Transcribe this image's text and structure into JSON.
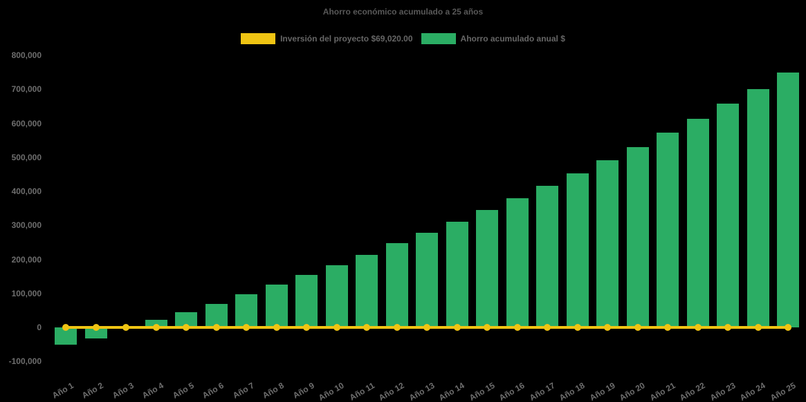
{
  "chart_data": {
    "type": "bar",
    "title": "Ahorro económico acumulado a 25 años",
    "xlabel": "",
    "ylabel": "",
    "categories": [
      "Año 1",
      "Año 2",
      "Año 3",
      "Año 4",
      "Año 5",
      "Año 6",
      "Año 7",
      "Año 8",
      "Año 9",
      "Año 10",
      "Año 11",
      "Año 12",
      "Año 13",
      "Año 14",
      "Año 15",
      "Año 16",
      "Año 17",
      "Año 18",
      "Año 19",
      "Año 20",
      "Año 21",
      "Año 22",
      "Año 23",
      "Año 24",
      "Año 25"
    ],
    "series": [
      {
        "name": "Inversión del proyecto $69,020.00",
        "type": "line",
        "color": "#EFC413",
        "values": [
          0,
          0,
          0,
          0,
          0,
          0,
          0,
          0,
          0,
          0,
          0,
          0,
          0,
          0,
          0,
          0,
          0,
          0,
          0,
          0,
          0,
          0,
          0,
          0,
          0
        ]
      },
      {
        "name": "Ahorro acumulado anual $",
        "type": "bar",
        "color": "#2BAD64",
        "values": [
          -50000,
          -32000,
          -4000,
          22000,
          45000,
          70000,
          98000,
          126000,
          154000,
          183000,
          214000,
          247000,
          278000,
          310000,
          346000,
          379000,
          417000,
          452000,
          492000,
          530000,
          572000,
          613000,
          657000,
          701000,
          749000
        ]
      }
    ],
    "ylim": [
      -100000,
      800000
    ],
    "yticks": [
      800000,
      700000,
      600000,
      500000,
      400000,
      300000,
      200000,
      100000,
      0,
      -100000
    ],
    "grid": false,
    "legend_position": "top-center",
    "background_color": "#000000",
    "text_color": "#6E6E6E"
  },
  "legend": {
    "items": [
      {
        "label": "Inversión del proyecto $69,020.00",
        "color": "#EFC413"
      },
      {
        "label": "Ahorro acumulado anual $",
        "color": "#2BAD64"
      }
    ]
  }
}
